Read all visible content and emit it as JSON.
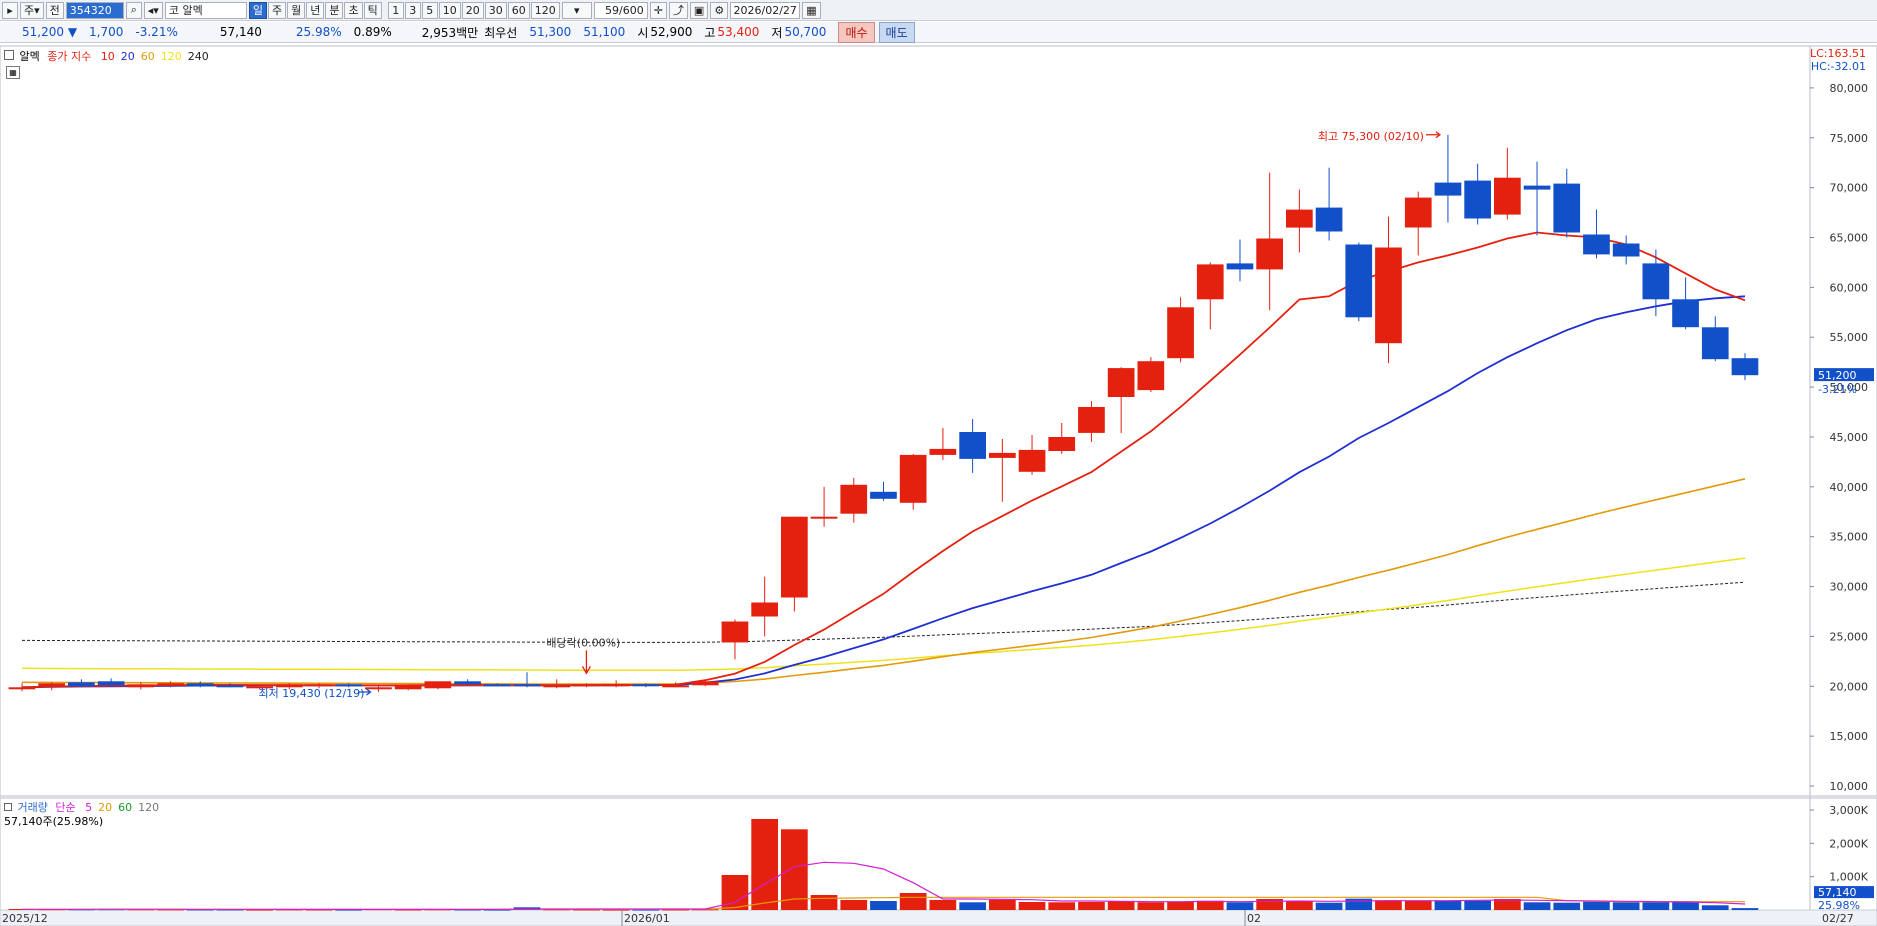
{
  "toolbar": {
    "market": "주",
    "prev": "전",
    "code": "354320",
    "exchange": "코",
    "name": "알멕",
    "periods": [
      "일",
      "주",
      "월",
      "년",
      "분",
      "초",
      "틱"
    ],
    "selected_period": "일",
    "intervals": [
      "1",
      "3",
      "5",
      "10",
      "20",
      "30",
      "60",
      "120"
    ],
    "count": "59/600",
    "date": "2026/02/27"
  },
  "quote": {
    "price": "51,200",
    "change": "1,700",
    "change_pct": "-3.21%",
    "volume": "57,140",
    "volume_ratio": "25.98%",
    "turnover": "0.89%",
    "amount": "2,953백만",
    "best_label": "최우선",
    "ask": "51,300",
    "bid": "51,100",
    "open_label": "시",
    "open": "52,900",
    "high_label": "고",
    "high": "53,400",
    "low_label": "저",
    "low": "50,700",
    "buy_label": "매수",
    "sell_label": "매도"
  },
  "price_legend": {
    "name": "알멕",
    "series_label": "종가 지수",
    "ma_labels": [
      "10",
      "20",
      "60",
      "120",
      "240"
    ],
    "ma_colors": [
      "#e4200f",
      "#1f2fd1",
      "#e39a0a",
      "#efe21b",
      "#222222"
    ]
  },
  "lc_label": "LC:163.51",
  "hc_label": "HC:-32.01",
  "price_tag": "51,200",
  "price_tag_pct": "-3.21%",
  "vol_legend": {
    "title": "거래량",
    "ma_label": "단순",
    "ma_periods": [
      "5",
      "20",
      "60",
      "120"
    ],
    "summary": "57,140주(25.98%)"
  },
  "vol_tag": "57,140",
  "vol_tag_pct": "25.98%",
  "annotations": {
    "high": "최고 75,300 (02/10)",
    "low": "최저 19,430 (12/19)",
    "dividend": "배당락(0.00%)"
  },
  "chart_data": [
    {
      "type": "candlestick",
      "y_ticks": [
        "80,000",
        "75,000",
        "70,000",
        "65,000",
        "60,000",
        "55,000",
        "50,000",
        "45,000",
        "40,000",
        "35,000",
        "30,000",
        "25,000",
        "20,000",
        "15,000",
        "10,000"
      ],
      "ylim": [
        9000,
        84000
      ],
      "x_labels": [
        "2025/12",
        "2026/01",
        "02",
        "02/27"
      ],
      "candles": [
        {
          "o": 19800,
          "h": 20300,
          "l": 19500,
          "c": 19900
        },
        {
          "o": 19900,
          "h": 20400,
          "l": 19600,
          "c": 20300
        },
        {
          "o": 20400,
          "h": 20700,
          "l": 19900,
          "c": 20000
        },
        {
          "o": 20500,
          "h": 20800,
          "l": 20000,
          "c": 20100
        },
        {
          "o": 19900,
          "h": 20400,
          "l": 19700,
          "c": 20200
        },
        {
          "o": 20200,
          "h": 20500,
          "l": 19900,
          "c": 20300
        },
        {
          "o": 20300,
          "h": 20500,
          "l": 19900,
          "c": 20000
        },
        {
          "o": 20100,
          "h": 20300,
          "l": 19900,
          "c": 20000
        },
        {
          "o": 19900,
          "h": 20100,
          "l": 19700,
          "c": 20000
        },
        {
          "o": 19900,
          "h": 20300,
          "l": 19700,
          "c": 20200
        },
        {
          "o": 20100,
          "h": 20300,
          "l": 19800,
          "c": 20200
        },
        {
          "o": 20200,
          "h": 20300,
          "l": 19900,
          "c": 20000
        },
        {
          "o": 19800,
          "h": 20000,
          "l": 19430,
          "c": 19900
        },
        {
          "o": 19700,
          "h": 20200,
          "l": 19600,
          "c": 20100
        },
        {
          "o": 19800,
          "h": 20500,
          "l": 19700,
          "c": 20500
        },
        {
          "o": 20500,
          "h": 20700,
          "l": 20100,
          "c": 20200
        },
        {
          "o": 20200,
          "h": 20300,
          "l": 20000,
          "c": 20100
        },
        {
          "o": 20200,
          "h": 21400,
          "l": 19900,
          "c": 20000
        },
        {
          "o": 20000,
          "h": 20700,
          "l": 19800,
          "c": 20100
        },
        {
          "o": 20100,
          "h": 20300,
          "l": 19900,
          "c": 20200
        },
        {
          "o": 20200,
          "h": 20600,
          "l": 19900,
          "c": 20200
        },
        {
          "o": 20200,
          "h": 20300,
          "l": 19900,
          "c": 20000
        },
        {
          "o": 20000,
          "h": 20400,
          "l": 19900,
          "c": 20100
        },
        {
          "o": 20100,
          "h": 20600,
          "l": 20000,
          "c": 20500
        },
        {
          "o": 24400,
          "h": 26700,
          "l": 22700,
          "c": 26500
        },
        {
          "o": 27000,
          "h": 31000,
          "l": 25000,
          "c": 28400
        },
        {
          "o": 28900,
          "h": 37000,
          "l": 27500,
          "c": 37000
        },
        {
          "o": 37000,
          "h": 40000,
          "l": 36000,
          "c": 37000
        },
        {
          "o": 37300,
          "h": 40900,
          "l": 36400,
          "c": 40200
        },
        {
          "o": 39500,
          "h": 40500,
          "l": 38600,
          "c": 38800
        },
        {
          "o": 38400,
          "h": 43300,
          "l": 37700,
          "c": 43200
        },
        {
          "o": 43200,
          "h": 45900,
          "l": 42700,
          "c": 43800
        },
        {
          "o": 45500,
          "h": 46800,
          "l": 41400,
          "c": 42800
        },
        {
          "o": 42900,
          "h": 44800,
          "l": 38500,
          "c": 43400
        },
        {
          "o": 41500,
          "h": 45200,
          "l": 41200,
          "c": 43700
        },
        {
          "o": 43600,
          "h": 46400,
          "l": 43300,
          "c": 45000
        },
        {
          "o": 45400,
          "h": 48600,
          "l": 44500,
          "c": 48000
        },
        {
          "o": 49000,
          "h": 52000,
          "l": 45400,
          "c": 51900
        },
        {
          "o": 49700,
          "h": 53000,
          "l": 49500,
          "c": 52600
        },
        {
          "o": 52900,
          "h": 59000,
          "l": 52500,
          "c": 58000
        },
        {
          "o": 58800,
          "h": 62500,
          "l": 55800,
          "c": 62300
        },
        {
          "o": 62400,
          "h": 64800,
          "l": 60600,
          "c": 61800
        },
        {
          "o": 61800,
          "h": 71500,
          "l": 57700,
          "c": 64900
        },
        {
          "o": 66000,
          "h": 69800,
          "l": 63500,
          "c": 67800
        },
        {
          "o": 68000,
          "h": 72000,
          "l": 64700,
          "c": 65600
        },
        {
          "o": 64300,
          "h": 64500,
          "l": 56600,
          "c": 57000
        },
        {
          "o": 54400,
          "h": 67100,
          "l": 52400,
          "c": 64000
        },
        {
          "o": 66000,
          "h": 69600,
          "l": 63200,
          "c": 69000
        },
        {
          "o": 70500,
          "h": 75300,
          "l": 66500,
          "c": 69200
        },
        {
          "o": 70700,
          "h": 72400,
          "l": 66300,
          "c": 66900
        },
        {
          "o": 67300,
          "h": 74000,
          "l": 66800,
          "c": 71000
        },
        {
          "o": 70200,
          "h": 72600,
          "l": 65200,
          "c": 69800
        },
        {
          "o": 70400,
          "h": 71900,
          "l": 65000,
          "c": 65500
        },
        {
          "o": 65300,
          "h": 67800,
          "l": 62900,
          "c": 63300
        },
        {
          "o": 64400,
          "h": 65200,
          "l": 62300,
          "c": 63100
        },
        {
          "o": 62400,
          "h": 63800,
          "l": 57100,
          "c": 58800
        },
        {
          "o": 58800,
          "h": 61000,
          "l": 55800,
          "c": 56000
        },
        {
          "o": 56000,
          "h": 57100,
          "l": 52600,
          "c": 52800
        },
        {
          "o": 52900,
          "h": 53400,
          "l": 50700,
          "c": 51200
        }
      ],
      "ma10": [
        19900,
        19980,
        20020,
        20060,
        20080,
        20120,
        20140,
        20140,
        20130,
        20120,
        20110,
        20100,
        20090,
        20090,
        20100,
        20110,
        20120,
        20110,
        20100,
        20100,
        20110,
        20120,
        20150,
        20610,
        21270,
        22450,
        24140,
        25680,
        27490,
        29270,
        31470,
        33570,
        35520,
        37060,
        38630,
        40040,
        41480,
        43530,
        45570,
        48000,
        50630,
        53260,
        55980,
        58780,
        59100,
        60700,
        61600,
        62500,
        63200,
        64000,
        64900,
        65500,
        65200,
        65000,
        64300,
        63000,
        61400,
        59800,
        58700
      ],
      "ma20": [
        19900,
        19950,
        19980,
        20000,
        20020,
        20050,
        20070,
        20080,
        20090,
        20090,
        20090,
        20090,
        20090,
        20090,
        20100,
        20100,
        20100,
        20100,
        20100,
        20100,
        20110,
        20120,
        20130,
        20360,
        20680,
        21290,
        22150,
        22940,
        23830,
        24700,
        25750,
        26830,
        27840,
        28670,
        29520,
        30320,
        31180,
        32360,
        33520,
        34880,
        36320,
        37920,
        39620,
        41470,
        43040,
        44900,
        46400,
        47990,
        49600,
        51400,
        53000,
        54400,
        55700,
        56800,
        57500,
        58100,
        58600,
        58900,
        59100
      ],
      "ma60": [
        20400,
        20390,
        20380,
        20370,
        20360,
        20350,
        20340,
        20330,
        20320,
        20310,
        20300,
        20290,
        20280,
        20270,
        20260,
        20250,
        20240,
        20230,
        20220,
        20220,
        20220,
        20220,
        20230,
        20330,
        20480,
        20720,
        21080,
        21400,
        21760,
        22090,
        22520,
        22970,
        23380,
        23740,
        24110,
        24490,
        24890,
        25400,
        25920,
        26550,
        27200,
        27880,
        28620,
        29420,
        30140,
        30920,
        31640,
        32410,
        33200,
        34100,
        34960,
        35740,
        36500,
        37280,
        38000,
        38700,
        39400,
        40100,
        40800
      ],
      "ma120": [
        21800,
        21780,
        21770,
        21760,
        21750,
        21740,
        21730,
        21720,
        21710,
        21700,
        21700,
        21690,
        21680,
        21670,
        21660,
        21650,
        21640,
        21630,
        21620,
        21610,
        21600,
        21600,
        21600,
        21650,
        21730,
        21860,
        22050,
        22230,
        22420,
        22600,
        22830,
        23070,
        23290,
        23490,
        23690,
        23900,
        24120,
        24390,
        24670,
        25000,
        25350,
        25720,
        26110,
        26540,
        26940,
        27360,
        27760,
        28170,
        28600,
        29080,
        29540,
        29980,
        30410,
        30840,
        31250,
        31650,
        32050,
        32450,
        32850
      ],
      "ma240": [
        24600,
        24590,
        24580,
        24570,
        24560,
        24550,
        24540,
        24530,
        24520,
        24510,
        24500,
        24490,
        24480,
        24470,
        24460,
        24450,
        24440,
        24430,
        24420,
        24410,
        24400,
        24400,
        24400,
        24420,
        24460,
        24530,
        24630,
        24720,
        24820,
        24910,
        25030,
        25160,
        25270,
        25380,
        25490,
        25600,
        25720,
        25870,
        26020,
        26200,
        26390,
        26590,
        26800,
        27030,
        27250,
        27480,
        27700,
        27920,
        28150,
        28410,
        28660,
        28900,
        29130,
        29360,
        29580,
        29800,
        30020,
        30230,
        30440
      ]
    },
    {
      "type": "bar",
      "title": "거래량",
      "y_ticks": [
        "3,000K",
        "2,000K",
        "1,000K"
      ],
      "ylim": [
        0,
        3300000
      ],
      "volumes": [
        30000,
        25000,
        20000,
        25000,
        20000,
        18000,
        15000,
        15000,
        12000,
        18000,
        15000,
        12000,
        25000,
        15000,
        20000,
        15000,
        12000,
        80000,
        20000,
        15000,
        12000,
        12000,
        15000,
        20000,
        1050000,
        2730000,
        2420000,
        450000,
        300000,
        270000,
        510000,
        300000,
        230000,
        310000,
        240000,
        230000,
        240000,
        270000,
        230000,
        250000,
        280000,
        230000,
        330000,
        260000,
        220000,
        340000,
        290000,
        280000,
        270000,
        280000,
        330000,
        230000,
        220000,
        250000,
        230000,
        230000,
        260000,
        140000,
        57140
      ],
      "ma5": [
        20000,
        21000,
        22000,
        23000,
        24000,
        23000,
        22000,
        21000,
        20000,
        19000,
        18000,
        18000,
        18000,
        18000,
        18000,
        18000,
        17000,
        30000,
        30000,
        30000,
        30000,
        30000,
        30000,
        30000,
        230000,
        780000,
        1300000,
        1430000,
        1400000,
        1230000,
        820000,
        330000,
        330000,
        320000,
        310000,
        270000,
        270000,
        260000,
        250000,
        250000,
        260000,
        250000,
        260000,
        270000,
        260000,
        270000,
        280000,
        280000,
        280000,
        290000,
        300000,
        290000,
        280000,
        270000,
        260000,
        250000,
        240000,
        220000,
        180000
      ],
      "ma20": [
        22000,
        22000,
        22000,
        22000,
        22000,
        22000,
        22000,
        22000,
        22000,
        22000,
        22000,
        22000,
        22000,
        22000,
        22000,
        22000,
        22000,
        25000,
        25000,
        25000,
        25000,
        25000,
        25000,
        25000,
        75000,
        210000,
        330000,
        350000,
        360000,
        370000,
        380000,
        380000,
        380000,
        380000,
        380000,
        380000,
        380000,
        380000,
        380000,
        380000,
        380000,
        380000,
        380000,
        380000,
        380000,
        380000,
        380000,
        380000,
        380000,
        380000,
        380000,
        380000,
        280000,
        260000,
        250000,
        250000,
        250000,
        250000,
        250000
      ]
    }
  ]
}
